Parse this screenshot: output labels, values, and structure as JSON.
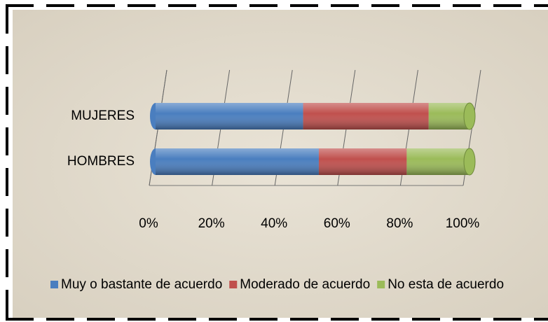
{
  "chart_data": {
    "type": "stacked-bar-horizontal",
    "categories": [
      "MUJERES",
      "HOMBRES"
    ],
    "series": [
      {
        "name": "Muy o bastante de acuerdo",
        "color": "#4a7ebf",
        "values": [
          47,
          52
        ]
      },
      {
        "name": "Moderado de acuerdo",
        "color": "#c0504d",
        "values": [
          40,
          28
        ]
      },
      {
        "name": "No esta de acuerdo",
        "color": "#9bbb59",
        "values": [
          13,
          20
        ]
      }
    ],
    "xlim": [
      0,
      100
    ],
    "xticks": [
      {
        "value": 0,
        "label": "0%"
      },
      {
        "value": 20,
        "label": "20%"
      },
      {
        "value": 40,
        "label": "40%"
      },
      {
        "value": 60,
        "label": "60%"
      },
      {
        "value": 80,
        "label": "80%"
      },
      {
        "value": 100,
        "label": "100%"
      }
    ],
    "grid": true
  }
}
